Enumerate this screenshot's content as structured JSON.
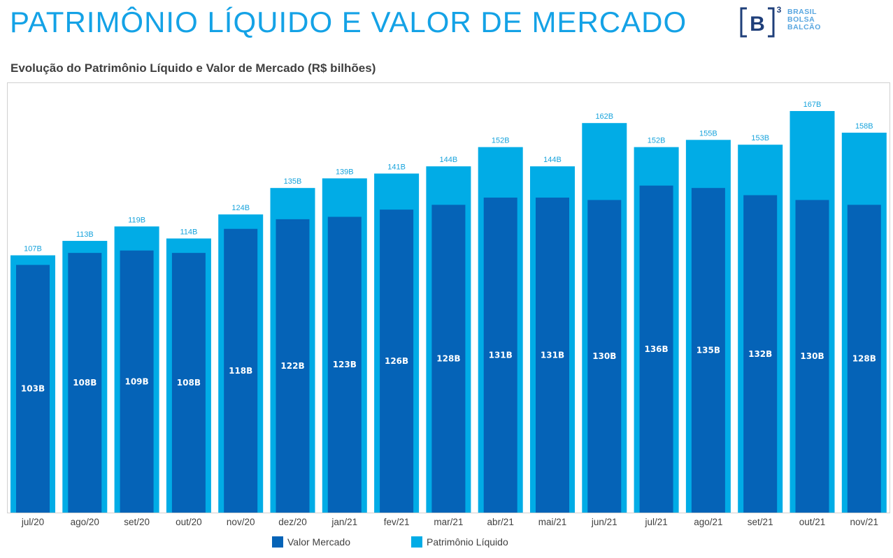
{
  "header": {
    "title": "PATRIMÔNIO LÍQUIDO E VALOR DE MERCADO",
    "logo": {
      "mark": "B",
      "superscript": "3",
      "lines": [
        "BRASIL",
        "BOLSA",
        "BALCÃO"
      ]
    }
  },
  "chart_data": {
    "type": "bar",
    "title": "Evolução do Patrimônio Líquido e Valor de Mercado (R$ bilhões)",
    "categories": [
      "jul/20",
      "ago/20",
      "set/20",
      "out/20",
      "nov/20",
      "dez/20",
      "jan/21",
      "fev/21",
      "mar/21",
      "abr/21",
      "mai/21",
      "jun/21",
      "jul/21",
      "ago/21",
      "set/21",
      "out/21",
      "nov/21"
    ],
    "series": [
      {
        "name": "Valor Mercado",
        "color": "#0563b7",
        "values": [
          103,
          108,
          109,
          108,
          118,
          122,
          123,
          126,
          128,
          131,
          131,
          130,
          136,
          135,
          132,
          130,
          128
        ],
        "labels": [
          "103B",
          "108B",
          "109B",
          "108B",
          "118B",
          "122B",
          "123B",
          "126B",
          "128B",
          "131B",
          "131B",
          "130B",
          "136B",
          "135B",
          "132B",
          "130B",
          "128B"
        ]
      },
      {
        "name": "Patrimônio Líquido",
        "color": "#01ace6",
        "values": [
          107,
          113,
          119,
          114,
          124,
          135,
          139,
          141,
          144,
          152,
          144,
          162,
          152,
          155,
          153,
          167,
          158
        ],
        "labels": [
          "107B",
          "113B",
          "119B",
          "114B",
          "124B",
          "135B",
          "139B",
          "141B",
          "144B",
          "152B",
          "144B",
          "162B",
          "152B",
          "155B",
          "153B",
          "167B",
          "158B"
        ]
      }
    ],
    "ylim": [
      0,
      176
    ],
    "grid": false,
    "legend_position": "bottom"
  }
}
